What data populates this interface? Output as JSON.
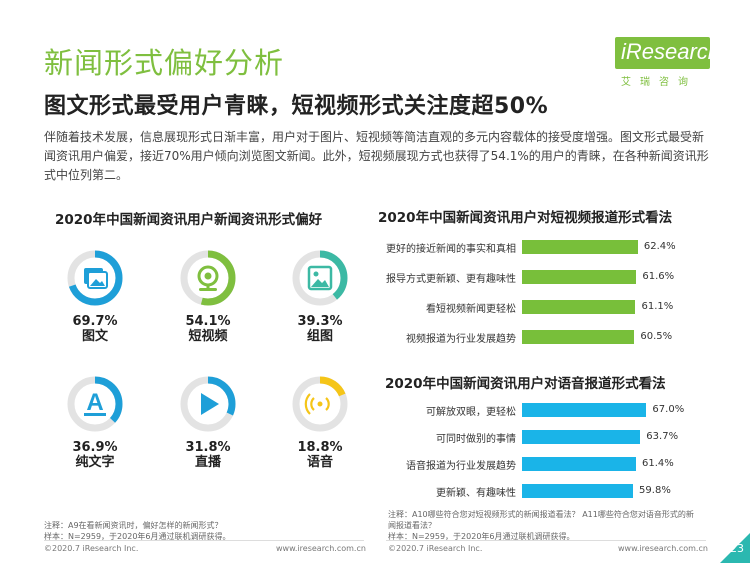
{
  "page": {
    "title": "新闻形式偏好分析",
    "subtitle": "图文形式最受用户青睐，短视频形式关注度超50%",
    "intro": "伴随着技术发展，信息展现形式日渐丰富，用户对于图片、短视频等简洁直观的多元内容载体的接受度增强。图文形式最受新闻资讯用户偏爱，接近70%用户倾向浏览图文新闻。此外，短视频展现方式也获得了54.1%的用户的青睐，在各种新闻资讯形式中位列第二。",
    "page_number": "23"
  },
  "logo": {
    "brand": "iResearch",
    "chinese": "艾瑞咨询",
    "color": "#7fbf3f"
  },
  "colors": {
    "accent_green": "#7fbf3f",
    "blue": "#1e9fd8",
    "teal": "#3cb9a4",
    "yellow": "#f5c518",
    "grey": "#e3e3e3",
    "bar_green": "#78bf3a",
    "bar_blue": "#1ab4e8"
  },
  "chart_data": [
    {
      "type": "donut",
      "title": "2020年中国新闻资讯用户新闻资讯形式偏好",
      "items": [
        {
          "label": "图文",
          "value": 69.7,
          "value_text": "69.7%",
          "color": "#1e9fd8",
          "icon": "image-icon"
        },
        {
          "label": "短视频",
          "value": 54.1,
          "value_text": "54.1%",
          "color": "#7fbf3f",
          "icon": "camera-icon"
        },
        {
          "label": "组图",
          "value": 39.3,
          "value_text": "39.3%",
          "color": "#3cb9a4",
          "icon": "picture-icon"
        },
        {
          "label": "纯文字",
          "value": 36.9,
          "value_text": "36.9%",
          "color": "#1e9fd8",
          "icon": "text-icon"
        },
        {
          "label": "直播",
          "value": 31.8,
          "value_text": "31.8%",
          "color": "#1e9fd8",
          "icon": "play-icon"
        },
        {
          "label": "语音",
          "value": 18.8,
          "value_text": "18.8%",
          "color": "#f5c518",
          "icon": "voice-icon"
        }
      ]
    },
    {
      "type": "bar",
      "orientation": "horizontal",
      "title": "2020年中国新闻资讯用户对短视频报道形式看法",
      "categories": [
        "更好的接近新闻的事实和真相",
        "报导方式更新颖、更有趣味性",
        "看短视频新闻更轻松",
        "视频报道为行业发展趋势"
      ],
      "values": [
        62.4,
        61.6,
        61.1,
        60.5
      ],
      "value_labels": [
        "62.4%",
        "61.6%",
        "61.1%",
        "60.5%"
      ],
      "color": "#78bf3a"
    },
    {
      "type": "bar",
      "orientation": "horizontal",
      "title": "2020年中国新闻资讯用户对语音报道形式看法",
      "categories": [
        "可解放双眼，更轻松",
        "可同时做别的事情",
        "语音报道为行业发展趋势",
        "更新颖、有趣味性"
      ],
      "values": [
        67.0,
        63.7,
        61.4,
        59.8
      ],
      "value_labels": [
        "67.0%",
        "63.7%",
        "61.4%",
        "59.8%"
      ],
      "color": "#1ab4e8"
    }
  ],
  "notes": {
    "left_line1": "注释：A9在看新闻资讯时，偏好怎样的新闻形式？",
    "left_line2": "样本：N=2959，于2020年6月通过联机调研获得。",
    "right_line1": "注释：A10哪些符合您对短视频形式的新闻报道看法？ A11哪些符合您对语音形式的新",
    "right_line2": "闻报道看法？",
    "right_line3": "样本：N=2959，于2020年6月通过联机调研获得。"
  },
  "footer": {
    "copyright": "©2020.7 iResearch Inc.",
    "website": "www.iresearch.com.cn"
  }
}
